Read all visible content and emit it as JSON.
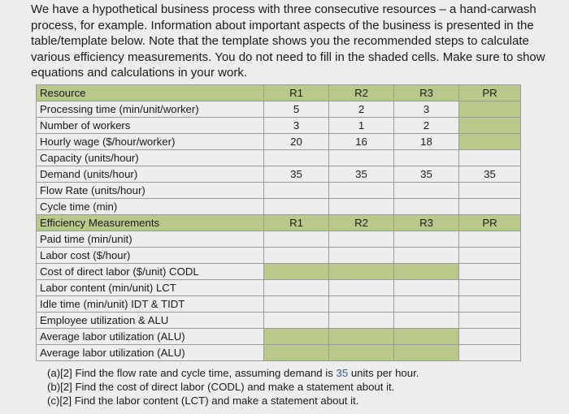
{
  "intro": {
    "line1": "We have a hypothetical business process with three consecutive resources – a hand-carwash",
    "line2": "process, for example. Information about important aspects of the business is presented in the",
    "line3": "table/template below. Note that the template shows you the recommended steps to calculate",
    "line4": "various efficiency measurements. You do not need to fill in the shaded cells. Make sure to show",
    "line5": "equations and calculations in your work."
  },
  "table": {
    "header": {
      "label": "Resource",
      "c1": "R1",
      "c2": "R2",
      "c3": "R3",
      "c4": "PR"
    },
    "rows": {
      "processing": {
        "label": "Processing time (min/unit/worker)",
        "c1": "5",
        "c2": "2",
        "c3": "3",
        "c4": ""
      },
      "workers": {
        "label": "Number of workers",
        "c1": "3",
        "c2": "1",
        "c3": "2",
        "c4": ""
      },
      "wage": {
        "label": "Hourly wage ($/hour/worker)",
        "c1": "20",
        "c2": "16",
        "c3": "18",
        "c4": ""
      },
      "capacity": {
        "label": "Capacity (units/hour)"
      },
      "demand": {
        "label": "Demand (units/hour)",
        "c1": "35",
        "c2": "35",
        "c3": "35",
        "c4": "35"
      },
      "flow": {
        "label": "Flow Rate (units/hour)"
      },
      "cycle": {
        "label": "Cycle time (min)"
      }
    },
    "eff_header": {
      "label": "Efficiency Measurements",
      "c1": "R1",
      "c2": "R2",
      "c3": "R3",
      "c4": "PR"
    },
    "eff_rows": {
      "paid": {
        "label": "Paid time (min/unit)"
      },
      "labor": {
        "label": "Labor cost ($/hour)"
      },
      "codl": {
        "label": "Cost of direct labor ($/unit) CODL"
      },
      "lct": {
        "label": "Labor content (min/unit) LCT"
      },
      "idle": {
        "label": "Idle time (min/unit) IDT & TIDT"
      },
      "util": {
        "label": "Employee utilization & ALU"
      },
      "alu1": {
        "label": "Average labor utilization (ALU)"
      },
      "alu2": {
        "label": "Average labor utilization (ALU)"
      }
    }
  },
  "questions": {
    "a_pre": "(a)[2] Find the flow rate and cycle time, assuming demand is ",
    "a_num": "35",
    "a_post": " units per hour.",
    "b": "(b)[2] Find the cost of direct labor (CODL) and make a statement about it.",
    "c": "(c)[2] Find the labor content (LCT) and make a statement about it."
  },
  "colors": {
    "shade": "#b9c98a",
    "highlight": "#2e5da8",
    "background": "#ededec"
  }
}
